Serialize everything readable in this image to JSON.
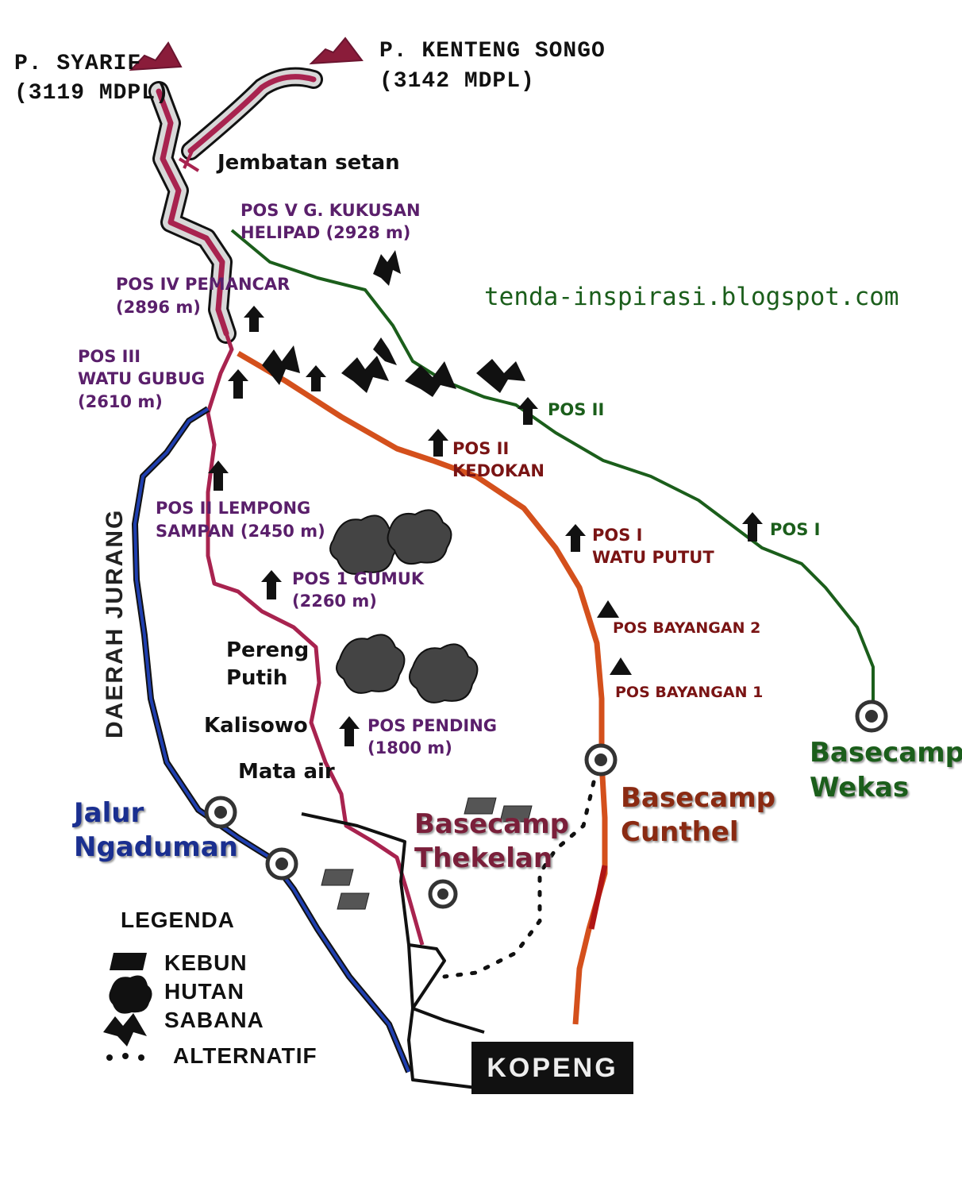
{
  "peaks": {
    "syarif_name": "P. SYARIF",
    "syarif_elev": "(3119 MDPL)",
    "kenteng_name": "P. KENTENG SONGO",
    "kenteng_elev": "(3142 MDPL)"
  },
  "places": {
    "jembatan": "Jembatan setan",
    "pereng1": "Pereng",
    "pereng2": "Putih",
    "kalisowo": "Kalisowo",
    "mata_air": "Mata air",
    "daerah_jurang": "DAERAH JURANG",
    "kopeng": "KOPENG"
  },
  "thekelan_route": {
    "pos5_a": "POS V   G. KUKUSAN",
    "pos5_b": "HELIPAD (2928 m)",
    "pos4_a": "POS IV PEMANCAR",
    "pos4_b": "(2896 m)",
    "pos3_a": "POS III",
    "pos3_b": "WATU GUBUG",
    "pos3_c": "(2610 m)",
    "pos2_a": "POS II LEMPONG",
    "pos2_b": "SAMPAN (2450 m)",
    "pos1_a": "POS 1 GUMUK",
    "pos1_b": "(2260 m)",
    "pending_a": "POS PENDING",
    "pending_b": "(1800 m)"
  },
  "cunthel_route": {
    "pos2_a": "POS II",
    "pos2_b": "KEDOKAN",
    "pos1_a": "POS I",
    "pos1_b": "WATU PUTUT",
    "bay2": "POS BAYANGAN 2",
    "bay1": "POS BAYANGAN 1"
  },
  "wekas_route": {
    "pos2": "POS II",
    "pos1": "POS I"
  },
  "basecamps": {
    "wekas_a": "Basecamp",
    "wekas_b": "Wekas",
    "cunthel_a": "Basecamp",
    "cunthel_b": "Cunthel",
    "thekelan_a": "Basecamp",
    "thekelan_b": "Thekelan",
    "ngaduman_a": "Jalur",
    "ngaduman_b": "Ngaduman"
  },
  "watermark": "tenda-inspirasi.blogspot.com",
  "legend": {
    "title": "LEGENDA",
    "kebun": "KEBUN",
    "hutan": "HUTAN",
    "sabana": "SABANA",
    "alternatif": "ALTERNATIF"
  },
  "colors": {
    "thekelan": "#a8234f",
    "cunthel": "#d4501c",
    "wekas": "#1b5e1b",
    "ngaduman": "#1f3fb0",
    "road": "#111111"
  }
}
